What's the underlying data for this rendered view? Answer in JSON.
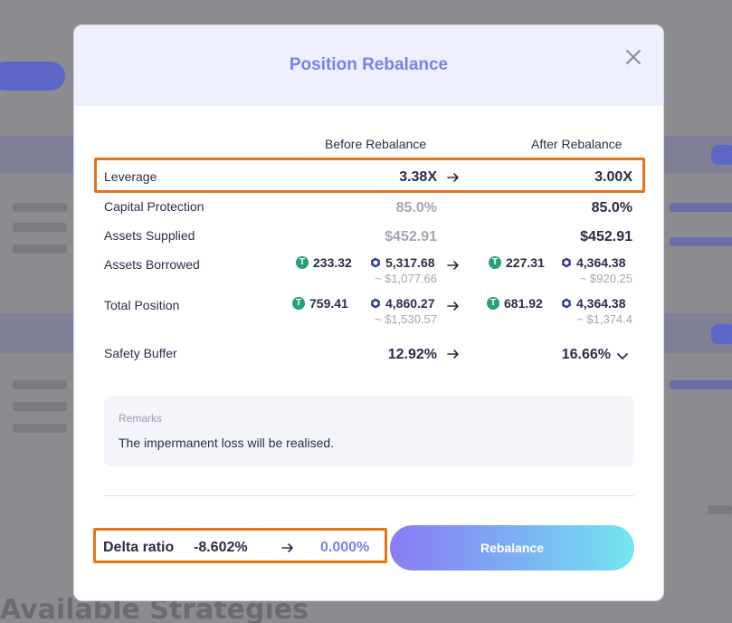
{
  "modal": {
    "title": "Position Rebalance",
    "columns": {
      "before": "Before Rebalance",
      "after": "After Rebalance"
    },
    "rows": {
      "leverage": {
        "label": "Leverage",
        "before": "3.38X",
        "after": "3.00X"
      },
      "capital_protection": {
        "label": "Capital Protection",
        "before": "85.0%",
        "after": "85.0%"
      },
      "assets_supplied": {
        "label": "Assets Supplied",
        "before": "$452.91",
        "after": "$452.91"
      },
      "assets_borrowed": {
        "label": "Assets Borrowed",
        "before": {
          "token_a": "233.32",
          "token_b": "5,317.68",
          "usd": "~ $1,077.66"
        },
        "after": {
          "token_a": "227.31",
          "token_b": "4,364.38",
          "usd": "~ $920.25"
        }
      },
      "total_position": {
        "label": "Total Position",
        "before": {
          "token_a": "759.41",
          "token_b": "4,860.27",
          "usd": "~ $1,530.57"
        },
        "after": {
          "token_a": "681.92",
          "token_b": "4,364.38",
          "usd": "~ $1,374.4"
        }
      },
      "safety_buffer": {
        "label": "Safety Buffer",
        "before": "12.92%",
        "after": "16.66%"
      }
    },
    "remarks": {
      "label": "Remarks",
      "text": "The impermanent loss will be realised."
    },
    "delta": {
      "label": "Delta ratio",
      "before": "-8.602%",
      "after": "0.000%"
    },
    "rebalance_label": "Rebalance",
    "tether_glyph": "T"
  },
  "background": {
    "heading": "Available Strategies"
  },
  "colors": {
    "accent": "#7a7ff0",
    "highlight": "#e8731a",
    "tether": "#26a17b"
  }
}
